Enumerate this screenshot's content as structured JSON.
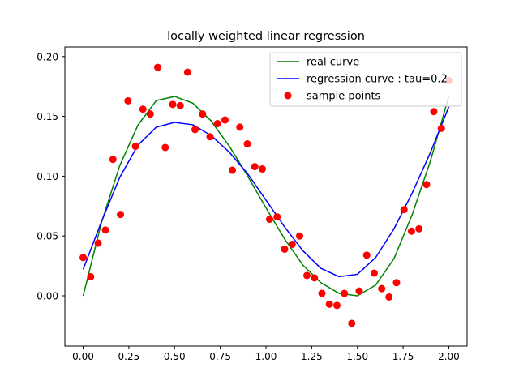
{
  "colors": {
    "real": "#008000",
    "regression": "#0000ff",
    "samples": "#ff0000",
    "axes": "#000000",
    "background": "#ffffff"
  },
  "chart_data": {
    "type": "scatter",
    "title": "locally weighted linear regression",
    "xlabel": "",
    "ylabel": "",
    "xlim": [
      -0.1,
      2.1
    ],
    "ylim": [
      -0.042,
      0.208
    ],
    "xticks": [
      0.0,
      0.25,
      0.5,
      0.75,
      1.0,
      1.25,
      1.5,
      1.75,
      2.0
    ],
    "xtick_labels": [
      "0.00",
      "0.25",
      "0.50",
      "0.75",
      "1.00",
      "1.25",
      "1.50",
      "1.75",
      "2.00"
    ],
    "yticks": [
      0.0,
      0.05,
      0.1,
      0.15,
      0.2
    ],
    "ytick_labels": [
      "0.00",
      "0.05",
      "0.10",
      "0.15",
      "0.20"
    ],
    "grid": false,
    "legend_position": "top-right",
    "series": [
      {
        "name": "real curve",
        "kind": "line",
        "color": "#008000",
        "x": [
          0.0,
          0.1,
          0.2,
          0.3,
          0.4,
          0.5,
          0.6,
          0.7,
          0.8,
          0.9,
          1.0,
          1.1,
          1.2,
          1.3,
          1.4,
          1.5,
          1.6,
          1.7,
          1.8,
          1.9,
          2.0
        ],
        "y": [
          0.0,
          0.0612,
          0.1088,
          0.1428,
          0.1632,
          0.1667,
          0.161,
          0.1462,
          0.125,
          0.1,
          0.0735,
          0.048,
          0.026,
          0.011,
          0.002,
          0.0,
          0.009,
          0.031,
          0.068,
          0.113,
          0.1667
        ]
      },
      {
        "name": "regression curve : tau=0.2",
        "kind": "line",
        "color": "#0000ff",
        "x": [
          0.0,
          0.1,
          0.2,
          0.3,
          0.4,
          0.5,
          0.6,
          0.7,
          0.8,
          0.9,
          1.0,
          1.1,
          1.2,
          1.3,
          1.4,
          1.5,
          1.6,
          1.7,
          1.8,
          1.9,
          2.0
        ],
        "y": [
          0.022,
          0.062,
          0.099,
          0.126,
          0.141,
          0.145,
          0.143,
          0.134,
          0.12,
          0.102,
          0.08,
          0.058,
          0.038,
          0.023,
          0.016,
          0.018,
          0.032,
          0.056,
          0.086,
          0.12,
          0.158
        ]
      },
      {
        "name": "sample points",
        "kind": "scatter",
        "color": "#ff0000",
        "x": [
          0.0,
          0.041,
          0.082,
          0.122,
          0.163,
          0.204,
          0.245,
          0.286,
          0.327,
          0.367,
          0.408,
          0.449,
          0.49,
          0.531,
          0.571,
          0.612,
          0.653,
          0.694,
          0.735,
          0.776,
          0.816,
          0.857,
          0.898,
          0.939,
          0.98,
          1.02,
          1.061,
          1.102,
          1.143,
          1.184,
          1.224,
          1.265,
          1.306,
          1.347,
          1.388,
          1.429,
          1.469,
          1.51,
          1.551,
          1.592,
          1.633,
          1.673,
          1.714,
          1.755,
          1.796,
          1.837,
          1.878,
          1.918,
          1.959,
          2.0
        ],
        "y": [
          0.032,
          0.016,
          0.044,
          0.055,
          0.114,
          0.068,
          0.163,
          0.125,
          0.156,
          0.152,
          0.191,
          0.124,
          0.16,
          0.159,
          0.187,
          0.139,
          0.152,
          0.133,
          0.144,
          0.147,
          0.105,
          0.141,
          0.127,
          0.108,
          0.106,
          0.064,
          0.066,
          0.039,
          0.043,
          0.05,
          0.017,
          0.015,
          0.002,
          -0.007,
          -0.008,
          0.002,
          -0.023,
          0.004,
          0.034,
          0.019,
          0.006,
          -0.001,
          0.011,
          0.072,
          0.054,
          0.056,
          0.093,
          0.154,
          0.14,
          0.18
        ]
      }
    ]
  }
}
